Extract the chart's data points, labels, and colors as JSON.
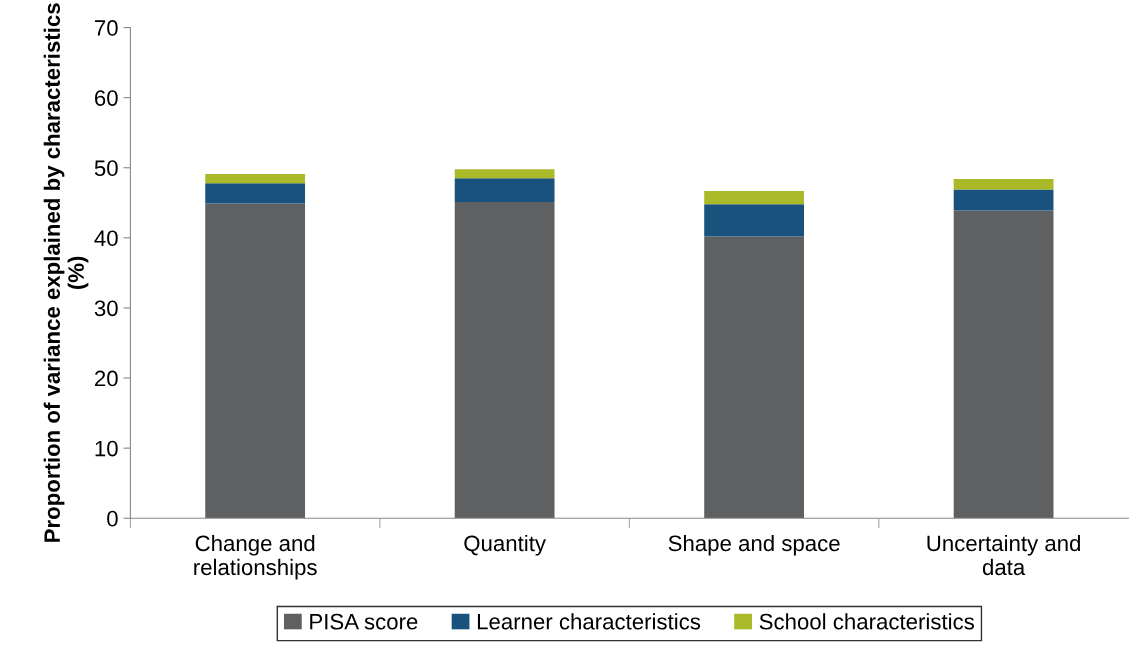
{
  "chart_data": {
    "type": "bar",
    "stacked": true,
    "ylabel": "Proportion of variance explained by characteristics (%)",
    "categories": [
      "Change and\nrelationships",
      "Quantity",
      "Shape and space",
      "Uncertainty and\ndata"
    ],
    "series": [
      {
        "name": "PISA score",
        "color": "#5f6062",
        "values": [
          44.9,
          45.1,
          40.2,
          43.9
        ]
      },
      {
        "name": "Learner characteristics",
        "color": "#1a527e",
        "values": [
          2.9,
          3.4,
          4.6,
          3.0
        ]
      },
      {
        "name": "School characteristics",
        "color": "#a9b928",
        "values": [
          1.3,
          1.3,
          1.9,
          1.5
        ]
      }
    ],
    "ylim": [
      0,
      70
    ],
    "yticks": [
      0,
      10,
      20,
      30,
      40,
      50,
      60,
      70
    ],
    "grid": false,
    "legend": "bottom"
  }
}
